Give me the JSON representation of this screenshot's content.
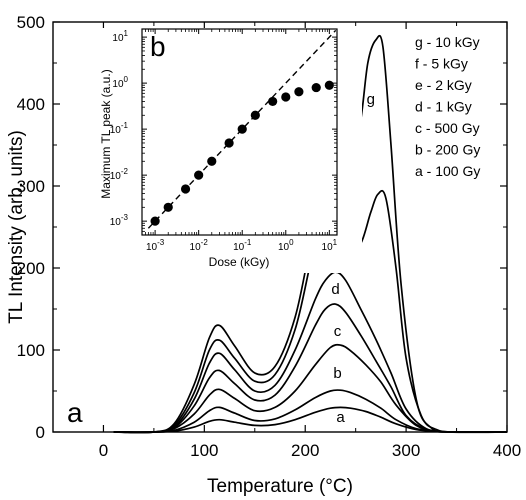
{
  "chart_data": [
    {
      "panel": "a",
      "type": "line",
      "xlabel": "Temperature (°C)",
      "ylabel": "TL Intensity (arb. units)",
      "xlim": [
        -50,
        400
      ],
      "ylim": [
        0,
        500
      ],
      "xticks": [
        0,
        100,
        200,
        300,
        400
      ],
      "yticks": [
        0,
        100,
        200,
        300,
        400,
        500
      ],
      "panel_label": "a",
      "legend": [
        "g - 10 kGy",
        "f  - 5 kGy",
        "e - 2 kGy",
        "d  - 1 kGy",
        "c  - 500 Gy",
        "b - 200 Gy",
        "a - 100 Gy"
      ],
      "series": [
        {
          "name": "a",
          "label": "a",
          "label_at": [
            235,
            12
          ],
          "x": [
            10,
            50,
            70,
            90,
            105,
            115,
            130,
            150,
            170,
            190,
            210,
            225,
            235,
            245,
            260,
            275,
            290,
            310,
            330,
            350,
            400
          ],
          "y": [
            0,
            0,
            1,
            6,
            13,
            15,
            12,
            8,
            9,
            15,
            24,
            29,
            30,
            29,
            25,
            18,
            10,
            3,
            1,
            0,
            0
          ]
        },
        {
          "name": "b",
          "label": "b",
          "label_at": [
            232,
            66
          ],
          "x": [
            10,
            50,
            70,
            90,
            105,
            115,
            130,
            150,
            170,
            190,
            210,
            225,
            235,
            245,
            260,
            275,
            290,
            310,
            330,
            350,
            400
          ],
          "y": [
            0,
            0,
            2,
            12,
            26,
            30,
            23,
            14,
            16,
            27,
            42,
            50,
            51,
            48,
            40,
            29,
            15,
            4,
            1,
            0,
            0
          ]
        },
        {
          "name": "c",
          "label": "c",
          "label_at": [
            232,
            117
          ],
          "x": [
            10,
            50,
            70,
            90,
            105,
            115,
            130,
            150,
            170,
            190,
            210,
            225,
            235,
            245,
            260,
            275,
            290,
            310,
            330,
            350,
            400
          ],
          "y": [
            0,
            0,
            4,
            22,
            45,
            52,
            41,
            26,
            30,
            50,
            82,
            103,
            106,
            99,
            82,
            61,
            33,
            8,
            1,
            0,
            0
          ]
        },
        {
          "name": "d",
          "label": "d",
          "label_at": [
            230,
            168
          ],
          "x": [
            10,
            50,
            70,
            90,
            105,
            115,
            130,
            150,
            170,
            190,
            210,
            220,
            230,
            240,
            255,
            270,
            285,
            300,
            320,
            345,
            400
          ],
          "y": [
            0,
            0,
            5,
            32,
            66,
            75,
            59,
            39,
            45,
            80,
            130,
            150,
            156,
            146,
            118,
            87,
            55,
            20,
            3,
            0,
            0
          ]
        },
        {
          "name": "e",
          "label": "e",
          "label_at": [
            230,
            206
          ],
          "x": [
            10,
            50,
            70,
            90,
            105,
            115,
            130,
            150,
            170,
            190,
            210,
            220,
            230,
            240,
            255,
            270,
            285,
            300,
            320,
            345,
            400
          ],
          "y": [
            0,
            0,
            6,
            40,
            84,
            96,
            76,
            50,
            57,
            100,
            162,
            185,
            195,
            185,
            150,
            113,
            72,
            28,
            4,
            0,
            0
          ]
        },
        {
          "name": "f",
          "label": "f",
          "label_at": [
            220,
            290
          ],
          "x": [
            10,
            50,
            70,
            90,
            105,
            115,
            130,
            150,
            170,
            190,
            205,
            215,
            225,
            235,
            245,
            255,
            265,
            272,
            280,
            290,
            300,
            315,
            330,
            350,
            400
          ],
          "y": [
            0,
            0,
            8,
            48,
            100,
            112,
            90,
            62,
            70,
            125,
            205,
            255,
            276,
            262,
            233,
            230,
            268,
            290,
            285,
            200,
            90,
            20,
            3,
            0,
            0
          ]
        },
        {
          "name": "g",
          "label": "g",
          "label_at": [
            265,
            400
          ],
          "x": [
            10,
            50,
            70,
            90,
            105,
            115,
            130,
            150,
            170,
            190,
            205,
            215,
            225,
            235,
            245,
            255,
            262,
            270,
            277,
            285,
            295,
            310,
            325,
            345,
            400
          ],
          "y": [
            0,
            0,
            10,
            58,
            115,
            130,
            105,
            72,
            80,
            140,
            228,
            287,
            308,
            316,
            320,
            380,
            450,
            478,
            470,
            350,
            180,
            40,
            5,
            0,
            0
          ]
        }
      ]
    },
    {
      "panel": "b",
      "type": "scatter",
      "xlabel": "Dose (kGy)",
      "ylabel": "Maximum TL peak (a.u.)",
      "xscale": "log",
      "yscale": "log",
      "xlim": [
        0.0005,
        15
      ],
      "ylim": [
        0.0005,
        15
      ],
      "xticks": [
        "10^-3",
        "10^-2",
        "10^-1",
        "10^0",
        "10^1"
      ],
      "yticks": [
        "10^-3",
        "10^-2",
        "10^-1",
        "10^0",
        "10^1"
      ],
      "panel_label": "b",
      "points": {
        "x": [
          0.001,
          0.002,
          0.005,
          0.01,
          0.02,
          0.05,
          0.1,
          0.2,
          0.5,
          1,
          2,
          5,
          10
        ],
        "y": [
          0.001,
          0.002,
          0.005,
          0.01,
          0.02,
          0.05,
          0.1,
          0.2,
          0.4,
          0.5,
          0.65,
          0.8,
          0.9
        ]
      },
      "reference_line": {
        "style": "dashed",
        "slope": 1
      }
    }
  ]
}
